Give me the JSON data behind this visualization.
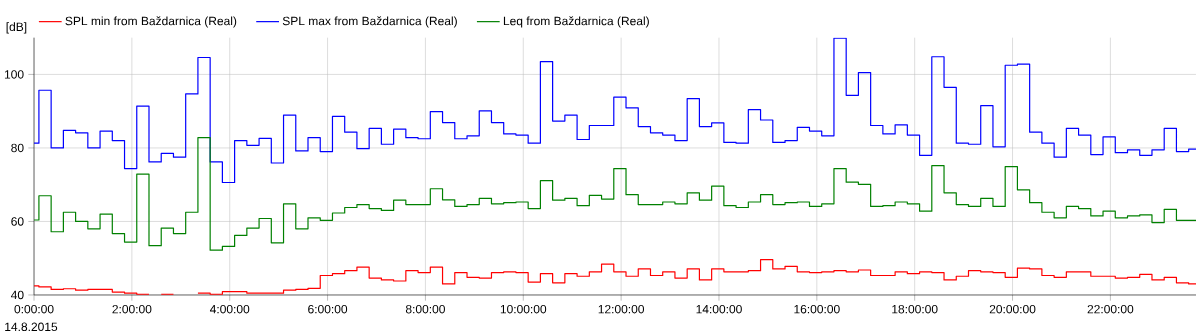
{
  "chart_data": {
    "type": "step",
    "ylabel": "[dB]",
    "annotations": [
      "14.8.2015"
    ],
    "x": [
      0,
      0.1,
      0.35,
      0.6,
      0.85,
      1.1,
      1.35,
      1.6,
      1.85,
      2.1,
      2.35,
      2.6,
      2.85,
      3.1,
      3.35,
      3.6,
      3.85,
      4.1,
      4.35,
      4.6,
      4.85,
      5.1,
      5.35,
      5.6,
      5.85,
      6.1,
      6.35,
      6.6,
      6.85,
      7.1,
      7.35,
      7.6,
      7.85,
      8.1,
      8.35,
      8.6,
      8.85,
      9.1,
      9.35,
      9.6,
      9.85,
      10.1,
      10.35,
      10.6,
      10.85,
      11.1,
      11.35,
      11.6,
      11.85,
      12.1,
      12.35,
      12.6,
      12.85,
      13.1,
      13.35,
      13.6,
      13.85,
      14.1,
      14.35,
      14.6,
      14.85,
      15.1,
      15.35,
      15.6,
      15.85,
      16.1,
      16.35,
      16.6,
      16.85,
      17.1,
      17.35,
      17.6,
      17.85,
      18.1,
      18.35,
      18.6,
      18.85,
      19.1,
      19.35,
      19.6,
      19.85,
      20.1,
      20.35,
      20.6,
      20.85,
      21.1,
      21.35,
      21.6,
      21.85,
      22.1,
      22.35,
      22.6,
      22.85,
      23.1,
      23.35,
      23.6,
      23.75
    ],
    "series": [
      {
        "name": "SPL min from Baždarnica (Real)",
        "color": "#ff0000",
        "values": [
          42.5,
          42.2,
          41.5,
          41.7,
          41.3,
          41.5,
          41.5,
          40.8,
          40.5,
          40.2,
          null,
          40.2,
          null,
          null,
          40.5,
          40.2,
          40.9,
          40.9,
          40.5,
          40.5,
          40.5,
          41.3,
          41.5,
          41.8,
          45.3,
          45.8,
          46.6,
          47.6,
          44.6,
          44.1,
          43.8,
          46.6,
          46.1,
          47.6,
          43.0,
          46.1,
          44.8,
          44.6,
          46.1,
          46.3,
          46.1,
          43.5,
          45.8,
          43.3,
          45.8,
          45.1,
          46.3,
          48.4,
          46.3,
          45.1,
          47.1,
          45.3,
          46.3,
          44.6,
          47.1,
          44.1,
          47.1,
          46.3,
          46.3,
          46.6,
          49.6,
          47.1,
          47.8,
          46.3,
          46.1,
          46.3,
          46.6,
          46.3,
          46.8,
          45.3,
          45.3,
          46.3,
          45.8,
          46.3,
          46.1,
          44.1,
          45.1,
          46.6,
          46.3,
          46.1,
          44.8,
          47.3,
          47.1,
          45.3,
          44.8,
          46.3,
          46.3,
          45.1,
          45.1,
          44.6,
          44.8,
          45.6,
          44.1,
          44.8,
          43.3,
          43.0,
          43.0
        ]
      },
      {
        "name": "SPL max from Baždarnica (Real)",
        "color": "#0000ff",
        "values": [
          81.3,
          95.7,
          80.0,
          84.8,
          84.1,
          80.0,
          84.6,
          82.0,
          74.4,
          91.4,
          76.2,
          78.5,
          77.5,
          94.7,
          104.6,
          76.2,
          70.6,
          82.0,
          80.7,
          82.6,
          75.9,
          88.9,
          79.2,
          82.8,
          79.0,
          88.6,
          84.3,
          79.8,
          85.3,
          81.0,
          85.1,
          82.8,
          82.5,
          89.9,
          86.9,
          82.5,
          83.3,
          90.1,
          86.9,
          83.8,
          83.5,
          81.3,
          103.5,
          87.3,
          88.9,
          82.3,
          86.1,
          86.1,
          93.8,
          90.9,
          85.8,
          84.1,
          83.5,
          82.0,
          93.4,
          85.8,
          86.8,
          81.5,
          81.3,
          90.4,
          87.6,
          81.5,
          82.0,
          85.6,
          84.6,
          83.3,
          109.9,
          94.3,
          100.5,
          86.1,
          83.8,
          86.3,
          83.5,
          78.0,
          104.8,
          96.5,
          81.3,
          81.0,
          91.5,
          80.3,
          102.5,
          102.8,
          84.3,
          81.3,
          77.5,
          85.3,
          83.5,
          78.2,
          83.0,
          78.7,
          79.5,
          78.0,
          79.5,
          85.3,
          79.0,
          79.7,
          79.7
        ]
      },
      {
        "name": "Leq from Baždarnica (Real)",
        "color": "#008000",
        "values": [
          60.4,
          67.0,
          57.2,
          62.5,
          60.0,
          58.0,
          62.0,
          56.7,
          54.4,
          72.9,
          53.4,
          58.2,
          56.7,
          62.5,
          82.8,
          52.2,
          53.2,
          56.2,
          58.2,
          60.8,
          54.2,
          64.8,
          58.0,
          61.0,
          60.3,
          62.3,
          63.8,
          64.6,
          63.5,
          63.0,
          65.8,
          64.6,
          64.6,
          68.9,
          65.9,
          64.1,
          64.6,
          66.3,
          64.8,
          65.1,
          65.3,
          63.5,
          71.1,
          65.8,
          66.3,
          64.3,
          67.1,
          66.1,
          74.4,
          67.3,
          64.6,
          64.6,
          65.3,
          64.8,
          67.8,
          65.8,
          69.6,
          64.3,
          63.8,
          65.3,
          67.3,
          64.6,
          65.1,
          65.3,
          64.1,
          64.8,
          74.4,
          70.7,
          70.1,
          64.1,
          64.3,
          65.3,
          64.8,
          62.8,
          75.2,
          67.8,
          64.6,
          64.1,
          66.3,
          64.1,
          74.9,
          68.6,
          65.1,
          62.5,
          61.0,
          64.1,
          63.5,
          61.5,
          62.8,
          61.0,
          61.5,
          61.8,
          59.7,
          63.3,
          60.3,
          60.3,
          60.3
        ]
      }
    ],
    "xlim": [
      0,
      23.75
    ],
    "ylim": [
      40,
      110
    ],
    "xticks": [
      {
        "value": 0,
        "label": "0:00:00"
      },
      {
        "value": 2,
        "label": "2:00:00"
      },
      {
        "value": 4,
        "label": "4:00:00"
      },
      {
        "value": 6,
        "label": "6:00:00"
      },
      {
        "value": 8,
        "label": "8:00:00"
      },
      {
        "value": 10,
        "label": "10:00:00"
      },
      {
        "value": 12,
        "label": "12:00:00"
      },
      {
        "value": 14,
        "label": "14:00:00"
      },
      {
        "value": 16,
        "label": "16:00:00"
      },
      {
        "value": 18,
        "label": "18:00:00"
      },
      {
        "value": 20,
        "label": "20:00:00"
      },
      {
        "value": 22,
        "label": "22:00:00"
      }
    ],
    "yticks": [
      40,
      60,
      80,
      100
    ],
    "grid": true,
    "legend": "top"
  }
}
